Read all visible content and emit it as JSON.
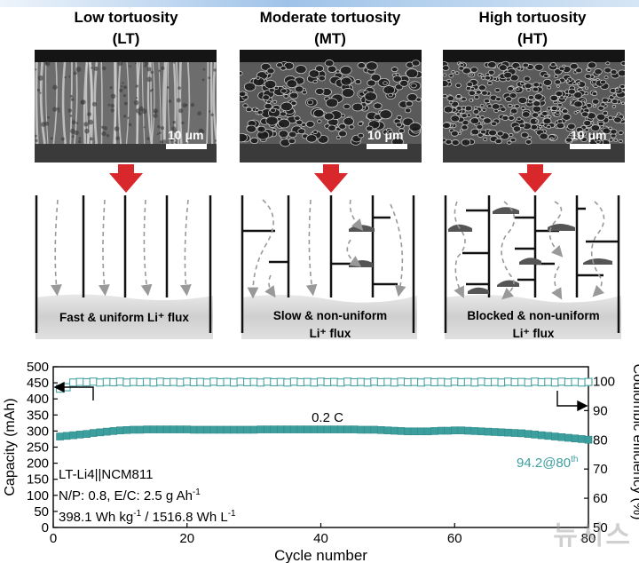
{
  "panels": [
    {
      "title": "Low tortuosity",
      "abbr": "(LT)",
      "scale": "10 μm",
      "flux_line1": "Fast & uniform Li⁺ flux",
      "flux_line2": ""
    },
    {
      "title": "Moderate tortuosity",
      "abbr": "(MT)",
      "scale": "10 μm",
      "flux_line1": "Slow & non-uniform",
      "flux_line2": "Li⁺ flux"
    },
    {
      "title": "High tortuosity",
      "abbr": "(HT)",
      "scale": "10 μm",
      "flux_line1": "Blocked & non-uniform",
      "flux_line2": "Li⁺ flux"
    }
  ],
  "watermark": "뉴시스",
  "colors": {
    "capacity": "#3d9e9e",
    "ce": "#4aa3a3",
    "arrow": "#d9282c",
    "deposit": "#707070"
  },
  "chart_data": {
    "type": "scatter",
    "xlabel": "Cycle number",
    "ylabel_left": "Capacity (mAh)",
    "ylabel_right": "Coulombic efficiency (%)",
    "xlim": [
      0,
      80
    ],
    "ylim_left": [
      0,
      500
    ],
    "ylim_right": [
      50,
      105
    ],
    "xticks": [
      0,
      20,
      40,
      60,
      80
    ],
    "yticks_left": [
      0,
      50,
      100,
      150,
      200,
      250,
      300,
      350,
      400,
      450,
      500
    ],
    "yticks_right": [
      50,
      60,
      70,
      80,
      90,
      100
    ],
    "annotations": {
      "rate": "0.2 C",
      "cell": "LT-Li4||NCM811",
      "np_ec_prefix": "N/P: 0.8, E/C: 2.5 g Ah",
      "np_ec_sup": "-1",
      "energy_a": "398.1 Wh kg",
      "energy_a_sup": "-1",
      "energy_b": " / 1516.8 Wh L",
      "energy_b_sup": "-1",
      "retention": "94.2@80",
      "retention_sup": "th"
    },
    "series": [
      {
        "name": "Capacity",
        "axis": "left",
        "marker": "filled-square",
        "x": [
          1,
          2,
          3,
          4,
          5,
          6,
          7,
          8,
          9,
          10,
          11,
          12,
          13,
          14,
          15,
          16,
          17,
          18,
          19,
          20,
          21,
          22,
          23,
          24,
          25,
          26,
          27,
          28,
          29,
          30,
          31,
          32,
          33,
          34,
          35,
          36,
          37,
          38,
          39,
          40,
          41,
          42,
          43,
          44,
          45,
          46,
          47,
          48,
          49,
          50,
          51,
          52,
          53,
          54,
          55,
          56,
          57,
          58,
          59,
          60,
          61,
          62,
          63,
          64,
          65,
          66,
          67,
          68,
          69,
          70,
          71,
          72,
          73,
          74,
          75,
          76,
          77,
          78,
          79,
          80
        ],
        "values": [
          283,
          285,
          287,
          289,
          291,
          294,
          296,
          298,
          300,
          302,
          303,
          304,
          304,
          305,
          305,
          305,
          305,
          305,
          305,
          305,
          304,
          304,
          304,
          304,
          304,
          304,
          304,
          304,
          304,
          304,
          305,
          305,
          305,
          305,
          305,
          305,
          305,
          305,
          305,
          305,
          305,
          305,
          305,
          305,
          305,
          304,
          304,
          304,
          303,
          302,
          301,
          300,
          299,
          299,
          299,
          299,
          300,
          301,
          301,
          302,
          302,
          301,
          300,
          299,
          298,
          297,
          296,
          295,
          294,
          293,
          291,
          289,
          287,
          285,
          283,
          281,
          279,
          277,
          275,
          273
        ]
      },
      {
        "name": "Coulombic efficiency",
        "axis": "right",
        "marker": "open-square",
        "x": [
          1,
          2,
          3,
          4,
          5,
          6,
          7,
          8,
          9,
          10,
          11,
          12,
          13,
          14,
          15,
          16,
          17,
          18,
          19,
          20,
          21,
          22,
          23,
          24,
          25,
          26,
          27,
          28,
          29,
          30,
          31,
          32,
          33,
          34,
          35,
          36,
          37,
          38,
          39,
          40,
          41,
          42,
          43,
          44,
          45,
          46,
          47,
          48,
          49,
          50,
          51,
          52,
          53,
          54,
          55,
          56,
          57,
          58,
          59,
          60,
          61,
          62,
          63,
          64,
          65,
          66,
          67,
          68,
          69,
          70,
          71,
          72,
          73,
          74,
          75,
          76,
          77,
          78,
          79,
          80
        ],
        "values": [
          97.5,
          98,
          99.6,
          99.8,
          99.7,
          99.9,
          99.6,
          99.8,
          99.7,
          99.9,
          99.6,
          99.8,
          99.7,
          99.8,
          99.6,
          99.9,
          99.7,
          99.8,
          99.6,
          99.9,
          99.7,
          99.8,
          99.6,
          99.9,
          99.7,
          99.8,
          99.6,
          99.9,
          99.7,
          99.8,
          99.6,
          99.9,
          99.7,
          99.8,
          99.6,
          99.9,
          99.7,
          99.8,
          99.6,
          99.9,
          99.7,
          99.8,
          99.6,
          99.9,
          99.7,
          99.8,
          99.6,
          99.9,
          99.7,
          99.8,
          99.6,
          99.9,
          99.7,
          99.8,
          99.6,
          99.9,
          99.7,
          99.8,
          99.6,
          99.9,
          99.7,
          99.8,
          99.6,
          99.9,
          99.7,
          99.8,
          99.6,
          99.9,
          99.7,
          99.8,
          99.6,
          99.9,
          99.7,
          99.8,
          99.6,
          99.9,
          99.7,
          99.8,
          99.6,
          99.8
        ]
      }
    ]
  }
}
